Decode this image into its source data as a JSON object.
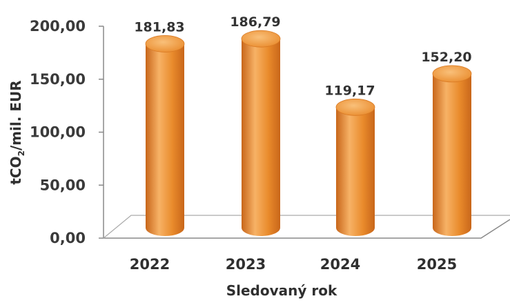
{
  "chart_data": {
    "type": "bar",
    "style": "3d-cylinder",
    "categories": [
      "2022",
      "2023",
      "2024",
      "2025"
    ],
    "values": [
      181.83,
      186.79,
      119.17,
      152.2
    ],
    "data_labels": [
      "181,83",
      "186,79",
      "119,17",
      "152,20"
    ],
    "ylim": [
      0,
      200
    ],
    "ytick_labels": [
      "0,00",
      "50,00",
      "100,00",
      "150,00",
      "200,00"
    ],
    "xlabel": "Sledovaný rok",
    "ylabel": {
      "main": "tCO",
      "subscript": "2",
      "suffix": "/mil. EUR"
    },
    "grid": false,
    "legend": "none",
    "colors": {
      "bar": "#e98a2b",
      "bar_light": "#f7b266",
      "bar_dark": "#c8661a",
      "axis": "#888888"
    }
  }
}
